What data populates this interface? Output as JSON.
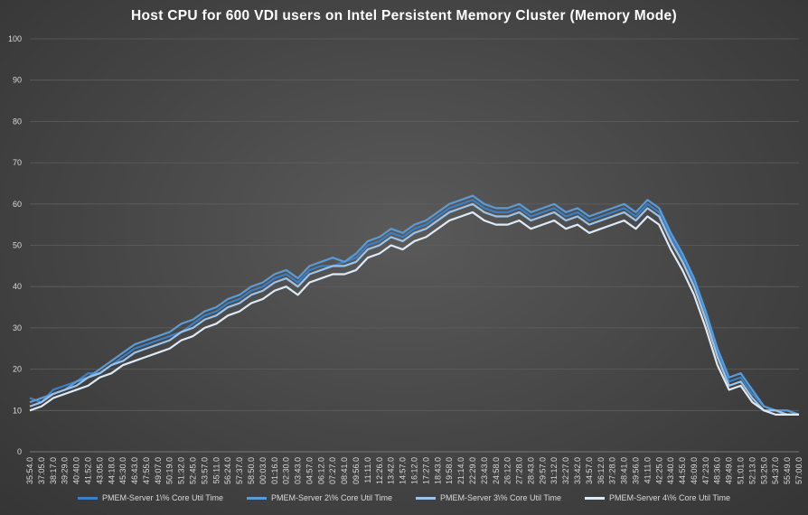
{
  "chart_data": {
    "type": "line",
    "title": "Host CPU for 600 VDI users on Intel Persistent Memory Cluster (Memory Mode)",
    "xlabel": "",
    "ylabel": "",
    "ylim": [
      0,
      100
    ],
    "yticks": [
      0,
      10,
      20,
      30,
      40,
      50,
      60,
      70,
      80,
      90,
      100
    ],
    "grid": true,
    "legend_position": "bottom",
    "x_tick_labels": [
      "35:54.0",
      "37:05.0",
      "38:17.0",
      "39:29.0",
      "40:40.0",
      "41:52.0",
      "43:05.0",
      "44:18.0",
      "45:30.0",
      "46:43.0",
      "47:55.0",
      "49:07.0",
      "50:19.0",
      "51:32.0",
      "52:45.0",
      "53:57.0",
      "55:11.0",
      "56:24.0",
      "57:37.0",
      "58:50.0",
      "00:03.0",
      "01:16.0",
      "02:30.0",
      "03:43.0",
      "04:57.0",
      "06:12.0",
      "07:27.0",
      "08:41.0",
      "09:56.0",
      "11:11.0",
      "12:26.0",
      "13:42.0",
      "14:57.0",
      "16:12.0",
      "17:27.0",
      "18:43.0",
      "19:58.0",
      "21:14.0",
      "22:29.0",
      "23:43.0",
      "24:58.0",
      "26:12.0",
      "27:28.0",
      "28:43.0",
      "29:57.0",
      "31:12.0",
      "32:27.0",
      "33:42.0",
      "34:57.0",
      "36:12.0",
      "37:28.0",
      "38:41.0",
      "39:56.0",
      "41:11.0",
      "42:25.0",
      "43:40.0",
      "44:55.0",
      "46:09.0",
      "47:23.0",
      "48:36.0",
      "49:49.0",
      "51:01.0",
      "52:13.0",
      "53:25.0",
      "54:37.0",
      "55:49.0",
      "57:00.0"
    ],
    "x_positions": [
      0,
      1,
      2,
      3,
      4,
      5,
      6,
      7,
      8,
      9,
      10,
      11,
      12,
      13,
      14,
      15,
      16,
      17,
      18,
      19,
      20,
      21,
      22,
      23,
      24,
      25,
      26,
      27,
      28,
      29,
      30,
      31,
      32,
      33,
      34,
      35,
      36,
      37,
      38,
      39,
      40,
      41,
      42,
      43,
      44,
      45,
      46,
      47,
      48,
      49,
      50,
      51,
      52,
      53,
      54,
      55,
      56,
      57,
      58,
      59,
      60,
      61,
      62,
      63,
      64,
      65,
      66
    ],
    "series": [
      {
        "name": "PMEM-Server 1\\% Core Util Time",
        "color": "#3d7fc4",
        "values": [
          13,
          12,
          15,
          16,
          17,
          19,
          19,
          21,
          23,
          25,
          26,
          27,
          28,
          29,
          31,
          33,
          34,
          36,
          37,
          39,
          40,
          42,
          43,
          41,
          44,
          45,
          45,
          46,
          47,
          50,
          51,
          53,
          52,
          54,
          55,
          57,
          59,
          60,
          61,
          59,
          58,
          58,
          59,
          57,
          58,
          59,
          57,
          58,
          56,
          57,
          58,
          59,
          57,
          60,
          58,
          52,
          47,
          41,
          33,
          24,
          17,
          18,
          14,
          11,
          10,
          10,
          9
        ]
      },
      {
        "name": "PMEM-Server 2\\% Core Util Time",
        "color": "#5b9bd5",
        "values": [
          12,
          13,
          14,
          15,
          17,
          18,
          20,
          22,
          24,
          26,
          27,
          28,
          29,
          31,
          32,
          34,
          35,
          37,
          38,
          40,
          41,
          43,
          44,
          42,
          45,
          46,
          47,
          46,
          48,
          51,
          52,
          54,
          53,
          55,
          56,
          58,
          60,
          61,
          62,
          60,
          59,
          59,
          60,
          58,
          59,
          60,
          58,
          59,
          57,
          58,
          59,
          60,
          58,
          61,
          59,
          53,
          48,
          42,
          34,
          25,
          18,
          19,
          15,
          11,
          10,
          10,
          9
        ]
      },
      {
        "name": "PMEM-Server 3\\% Core Util Time",
        "color": "#9dc3e6",
        "values": [
          11,
          12,
          14,
          15,
          16,
          18,
          19,
          21,
          22,
          24,
          25,
          26,
          27,
          29,
          30,
          32,
          33,
          35,
          36,
          38,
          39,
          41,
          42,
          40,
          43,
          44,
          45,
          45,
          46,
          49,
          50,
          52,
          51,
          53,
          54,
          56,
          58,
          59,
          60,
          58,
          57,
          57,
          58,
          56,
          57,
          58,
          56,
          57,
          55,
          56,
          57,
          58,
          56,
          59,
          57,
          51,
          46,
          40,
          32,
          23,
          16,
          17,
          13,
          10,
          10,
          9,
          9
        ]
      },
      {
        "name": "PMEM-Server 4\\% Core Util Time",
        "color": "#deebf7",
        "values": [
          10,
          11,
          13,
          14,
          15,
          16,
          18,
          19,
          21,
          22,
          23,
          24,
          25,
          27,
          28,
          30,
          31,
          33,
          34,
          36,
          37,
          39,
          40,
          38,
          41,
          42,
          43,
          43,
          44,
          47,
          48,
          50,
          49,
          51,
          52,
          54,
          56,
          57,
          58,
          56,
          55,
          55,
          56,
          54,
          55,
          56,
          54,
          55,
          53,
          54,
          55,
          56,
          54,
          57,
          55,
          49,
          44,
          38,
          30,
          21,
          15,
          16,
          12,
          10,
          9,
          9,
          9
        ]
      }
    ]
  }
}
